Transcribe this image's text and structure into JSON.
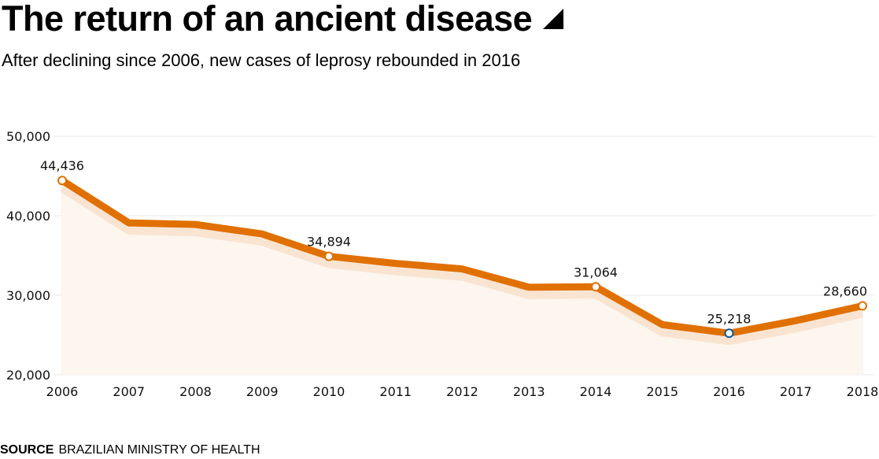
{
  "header": {
    "title": "The return of an ancient disease",
    "subtitle": "After declining since 2006, new cases of leprosy rebounded in 2016"
  },
  "footer": {
    "source_label": "SOURCE",
    "source_text": "BRAZILIAN MINISTRY OF HEALTH"
  },
  "colors": {
    "line": "#e07000",
    "line_shadow": "#f9e4d2",
    "area_fill": "#fcf6ef",
    "grid": "#ece9e4",
    "marker_fill": "#ffffff",
    "highlight_marker": "#0c5a9e"
  },
  "chart_data": {
    "type": "line",
    "title": "The return of an ancient disease",
    "subtitle": "After declining since 2006, new cases of leprosy rebounded in 2016",
    "xlabel": "",
    "ylabel": "",
    "ylim": [
      20000,
      50000
    ],
    "yticks": [
      20000,
      30000,
      40000,
      50000
    ],
    "ytick_labels": [
      "20,000",
      "30,000",
      "40,000",
      "50,000"
    ],
    "grid": true,
    "x": [
      "2006",
      "2007",
      "2008",
      "2009",
      "2010",
      "2011",
      "2012",
      "2013",
      "2014",
      "2015",
      "2016",
      "2017",
      "2018"
    ],
    "series": [
      {
        "name": "New leprosy cases",
        "values": [
          44436,
          39100,
          38900,
          37700,
          34894,
          34000,
          33300,
          31000,
          31064,
          26300,
          25218,
          26800,
          28660
        ]
      }
    ],
    "annotations": [
      {
        "x": "2006",
        "value": 44436,
        "label": "44,436",
        "highlight": false
      },
      {
        "x": "2010",
        "value": 34894,
        "label": "34,894",
        "highlight": false
      },
      {
        "x": "2014",
        "value": 31064,
        "label": "31,064",
        "highlight": false
      },
      {
        "x": "2016",
        "value": 25218,
        "label": "25,218",
        "highlight": true
      },
      {
        "x": "2018",
        "value": 28660,
        "label": "28,660",
        "highlight": false
      }
    ],
    "source": "BRAZILIAN MINISTRY OF HEALTH"
  }
}
